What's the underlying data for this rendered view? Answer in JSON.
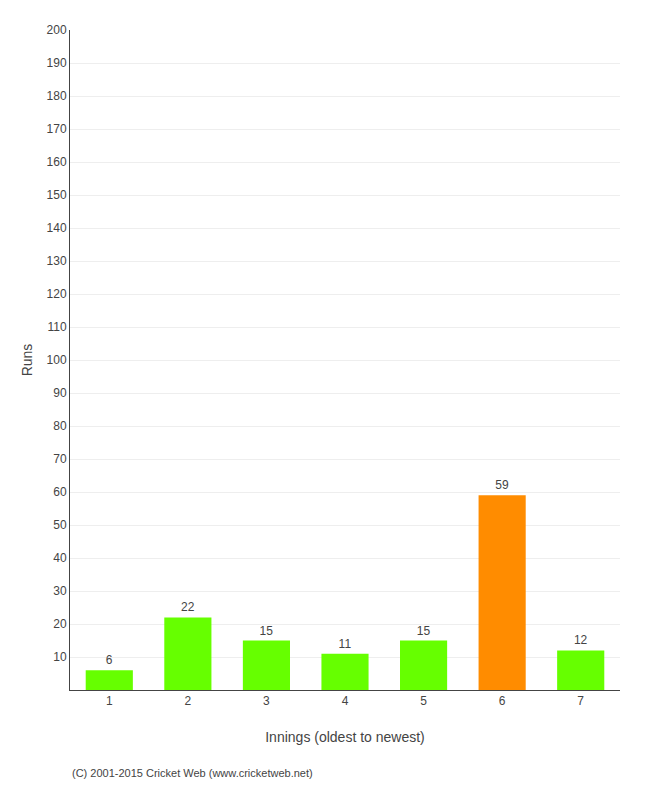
{
  "chart_data": {
    "type": "bar",
    "categories": [
      "1",
      "2",
      "3",
      "4",
      "5",
      "6",
      "7"
    ],
    "values": [
      6,
      22,
      15,
      11,
      15,
      59,
      12
    ],
    "colors": [
      "#66ff00",
      "#66ff00",
      "#66ff00",
      "#66ff00",
      "#66ff00",
      "#ff8c00",
      "#66ff00"
    ],
    "ylabel": "Runs",
    "xlabel": "Innings (oldest to newest)",
    "ylim": [
      0,
      200
    ],
    "yticks": [
      10,
      20,
      30,
      40,
      50,
      60,
      70,
      80,
      90,
      100,
      110,
      120,
      130,
      140,
      150,
      160,
      170,
      180,
      190,
      200
    ],
    "grid": true,
    "data_labels": true,
    "annotations": [
      "(C) 2001-2015 Cricket Web (www.cricketweb.net)"
    ]
  }
}
